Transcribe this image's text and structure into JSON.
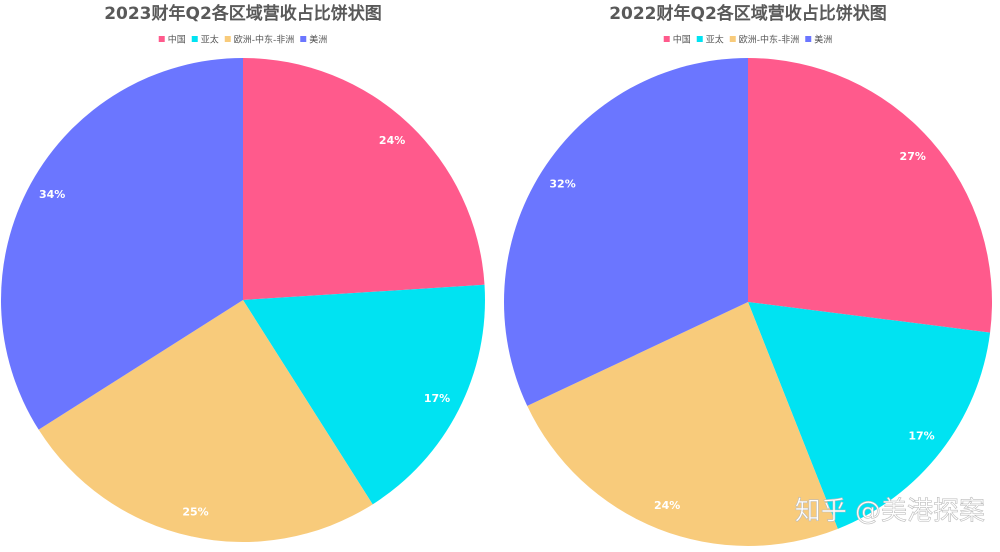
{
  "chart_data": [
    {
      "type": "pie",
      "title": "2023财年Q2各区域营收占比饼状图",
      "categories": [
        "中国",
        "亚太",
        "欧洲-中东-非洲",
        "美洲"
      ],
      "values": [
        24,
        17,
        25,
        34
      ],
      "value_labels": [
        "24%",
        "17%",
        "25%",
        "34%"
      ],
      "colors": [
        "#ff5a8c",
        "#00e3f2",
        "#f8cb7b",
        "#6b76ff"
      ]
    },
    {
      "type": "pie",
      "title": "2022财年Q2各区域营收占比饼状图",
      "categories": [
        "中国",
        "亚太",
        "欧洲-中东-非洲",
        "美洲"
      ],
      "values": [
        27,
        17,
        24,
        32
      ],
      "value_labels": [
        "27%",
        "17%",
        "24%",
        "32%"
      ],
      "colors": [
        "#ff5a8c",
        "#00e3f2",
        "#f8cb7b",
        "#6b76ff"
      ]
    }
  ],
  "watermark": "知乎 @美港探案"
}
